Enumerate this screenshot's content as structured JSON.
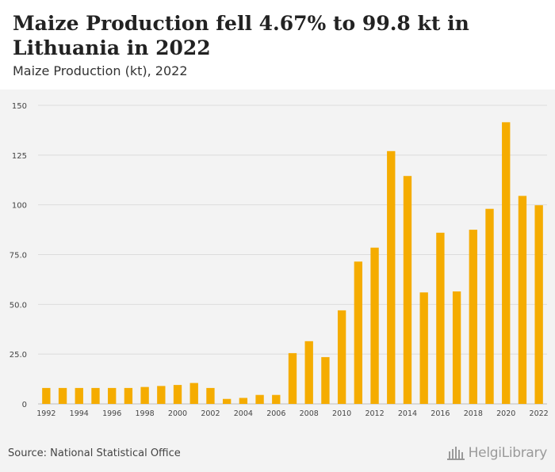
{
  "header": {
    "title": "Maize Production fell 4.67% to 99.8 kt in Lithuania in 2022",
    "subtitle": "Maize Production (kt), 2022"
  },
  "footer": {
    "source": "Source: National Statistical Office",
    "logo": "HelgiLibrary"
  },
  "chart_data": {
    "type": "bar",
    "title": "",
    "xlabel": "",
    "ylabel": "",
    "ylim": [
      0,
      150
    ],
    "yticks": [
      {
        "value": 0,
        "label": "0"
      },
      {
        "value": 25,
        "label": "25.0"
      },
      {
        "value": 50,
        "label": "50.0"
      },
      {
        "value": 75,
        "label": "75.0"
      },
      {
        "value": 100,
        "label": "100"
      },
      {
        "value": 125,
        "label": "125"
      },
      {
        "value": 150,
        "label": "150"
      }
    ],
    "categories": [
      "1992",
      "1993",
      "1994",
      "1995",
      "1996",
      "1997",
      "1998",
      "1999",
      "2000",
      "2001",
      "2002",
      "2003",
      "2004",
      "2005",
      "2006",
      "2007",
      "2008",
      "2009",
      "2010",
      "2011",
      "2012",
      "2013",
      "2014",
      "2015",
      "2016",
      "2017",
      "2018",
      "2019",
      "2020",
      "2021",
      "2022"
    ],
    "xtick_labels": [
      "1992",
      "1994",
      "1996",
      "1998",
      "2000",
      "2002",
      "2004",
      "2006",
      "2008",
      "2010",
      "2012",
      "2014",
      "2016",
      "2018",
      "2020",
      "2022"
    ],
    "values": [
      8,
      8,
      8,
      8,
      8,
      8,
      8.5,
      9,
      9.5,
      10.5,
      8,
      2.5,
      3,
      4.5,
      4.5,
      25.5,
      31.5,
      23.5,
      47,
      71.5,
      78.5,
      127,
      114.5,
      56,
      86,
      56.5,
      87.5,
      98,
      141.5,
      104.5,
      99.8
    ],
    "grid": true,
    "colors": {
      "bar": "#f5ac00",
      "grid": "#dcdcdc",
      "tick_text": "#444444"
    }
  }
}
